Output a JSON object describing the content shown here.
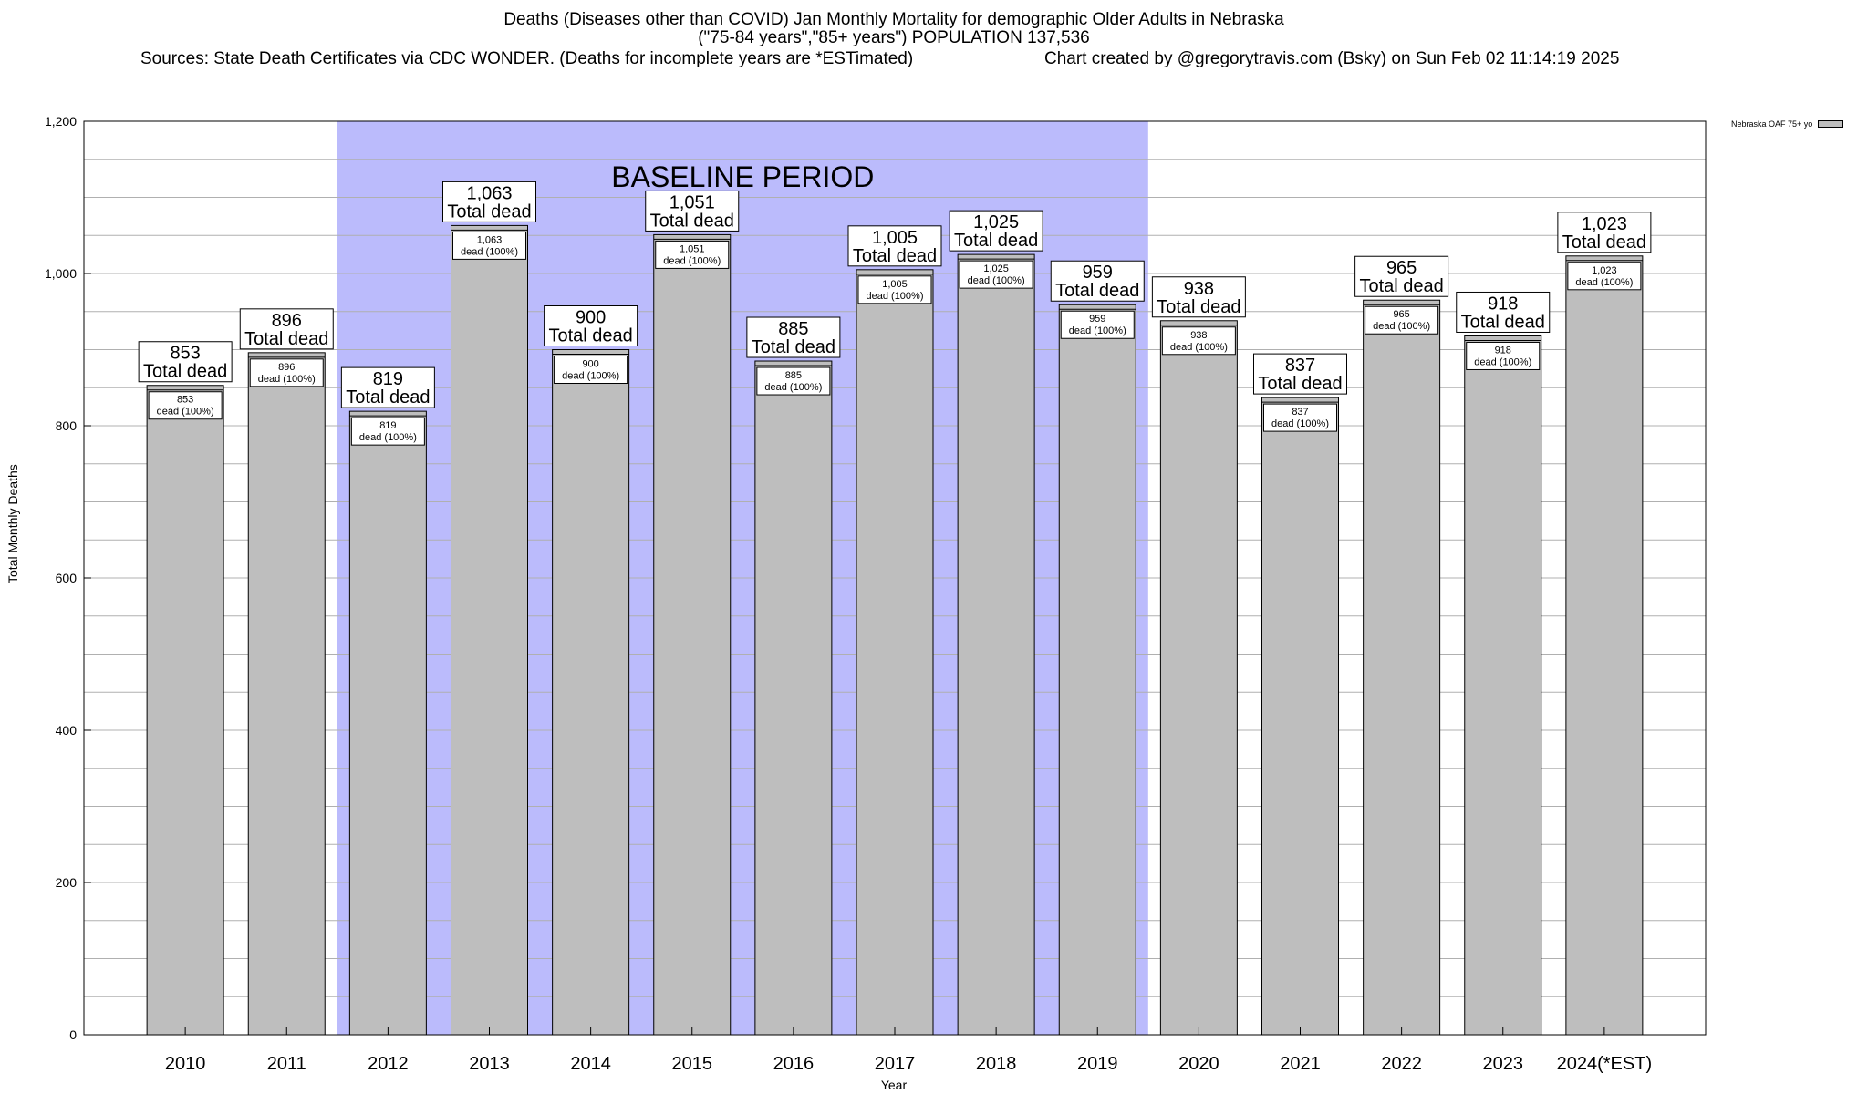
{
  "header": {
    "title_line1": "Deaths (Diseases other than COVID) Jan Monthly Mortality for demographic Older Adults in Nebraska",
    "title_line2": "(\"75-84 years\",\"85+ years\") POPULATION 137,536",
    "sources": "Sources: State Death Certificates via CDC WONDER. (Deaths for incomplete years are *ESTimated)",
    "credit": "Chart created by @gregorytravis.com (Bsky) on Sun Feb 02 11:14:19 2025"
  },
  "chart_data": {
    "type": "bar",
    "categories": [
      "2010",
      "2011",
      "2012",
      "2013",
      "2014",
      "2015",
      "2016",
      "2017",
      "2018",
      "2019",
      "2020",
      "2021",
      "2022",
      "2023",
      "2024(*EST)"
    ],
    "series": [
      {
        "name": "Nebraska OAF 75+ yo",
        "values": [
          853,
          896,
          819,
          1063,
          900,
          1051,
          885,
          1005,
          1025,
          959,
          938,
          837,
          965,
          918,
          1023
        ],
        "color": "#bebebe"
      }
    ],
    "value_labels": [
      "853",
      "896",
      "819",
      "1,063",
      "900",
      "1,051",
      "885",
      "1,005",
      "1,025",
      "959",
      "938",
      "837",
      "965",
      "918",
      "1,023"
    ],
    "big_label_suffix": "Total dead",
    "small_label_suffix": "dead (100%)",
    "baseline": {
      "label": "BASELINE PERIOD",
      "from": "2012",
      "to": "2019",
      "color": "#bbbbfc"
    },
    "xlabel": "Year",
    "ylabel": "Total Monthly Deaths",
    "ylim": [
      0,
      1200
    ],
    "yticks": [
      0,
      200,
      400,
      600,
      800,
      1000,
      1200
    ],
    "ytick_labels": [
      "0",
      "200",
      "400",
      "600",
      "800",
      "1,000",
      "1,200"
    ],
    "grid": true,
    "legend_position": "top-right"
  }
}
